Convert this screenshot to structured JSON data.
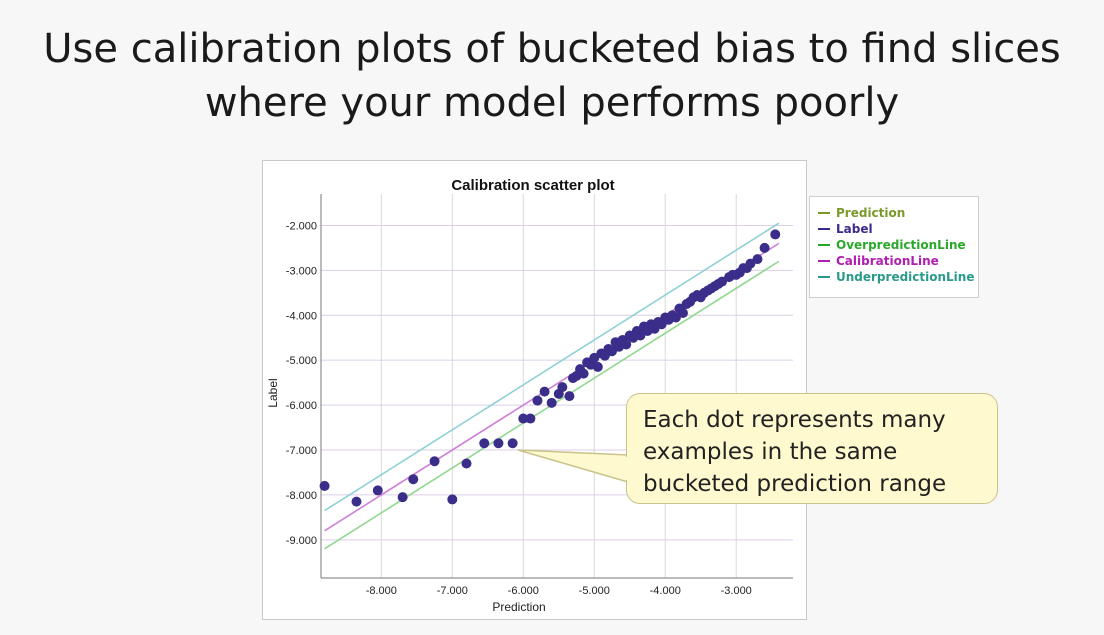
{
  "slide": {
    "title_lines": [
      "Use calibration plots of bucketed bias to find slices",
      "where your model performs poorly"
    ]
  },
  "callout": {
    "lines": [
      "Each dot represents many",
      "examples in the same",
      "bucketed prediction range"
    ]
  },
  "chart_data": {
    "type": "scatter",
    "title": "Calibration scatter plot",
    "xlabel": "Prediction",
    "ylabel": "Label",
    "xlim": [
      -8.85,
      -2.2
    ],
    "ylim": [
      -9.85,
      -1.3
    ],
    "x_ticks": [
      -8,
      -7,
      -6,
      -5,
      -4,
      -3
    ],
    "y_ticks": [
      -2,
      -3,
      -4,
      -5,
      -6,
      -7,
      -8,
      -9
    ],
    "x_tick_labels": [
      "-8.000",
      "-7.000",
      "-6.000",
      "-5.000",
      "-4.000",
      "-3.000"
    ],
    "y_tick_labels": [
      "-2.000",
      "-3.000",
      "-4.000",
      "-5.000",
      "-6.000",
      "-7.000",
      "-8.000",
      "-9.000"
    ],
    "grid": true,
    "legend_position": "outside-right",
    "legend": [
      {
        "name": "Prediction",
        "color": "#7a9a2a"
      },
      {
        "name": "Label",
        "color": "#3d2a8a"
      },
      {
        "name": "OverpredictionLine",
        "color": "#2aa82a"
      },
      {
        "name": "CalibrationLine",
        "color": "#b020b0"
      },
      {
        "name": "UnderpredictionLine",
        "color": "#2a9a8a"
      }
    ],
    "lines": [
      {
        "name": "CalibrationLine",
        "color": "#d080d8",
        "x": [
          -8.8,
          -2.4
        ],
        "y": [
          -8.8,
          -2.4
        ]
      },
      {
        "name": "UnderpredictionLine",
        "color": "#8fd0d6",
        "x": [
          -8.8,
          -2.4
        ],
        "y": [
          -8.35,
          -1.95
        ]
      },
      {
        "name": "OverpredictionLine",
        "color": "#90d890",
        "x": [
          -8.8,
          -2.4
        ],
        "y": [
          -9.2,
          -2.8
        ]
      }
    ],
    "points": {
      "color": "#3b2e8a",
      "x": [
        -8.8,
        -8.35,
        -8.05,
        -7.7,
        -7.55,
        -7.25,
        -7.0,
        -6.8,
        -6.55,
        -6.35,
        -6.15,
        -6.0,
        -5.9,
        -5.8,
        -5.7,
        -5.6,
        -5.5,
        -5.45,
        -5.35,
        -5.3,
        -5.25,
        -5.2,
        -5.15,
        -5.1,
        -5.05,
        -5.0,
        -4.95,
        -4.9,
        -4.85,
        -4.8,
        -4.75,
        -4.7,
        -4.65,
        -4.6,
        -4.55,
        -4.5,
        -4.45,
        -4.4,
        -4.35,
        -4.3,
        -4.25,
        -4.2,
        -4.15,
        -4.1,
        -4.05,
        -4.0,
        -3.95,
        -3.9,
        -3.85,
        -3.8,
        -3.75,
        -3.7,
        -3.65,
        -3.6,
        -3.55,
        -3.5,
        -3.45,
        -3.4,
        -3.35,
        -3.3,
        -3.25,
        -3.2,
        -3.1,
        -3.05,
        -3.0,
        -2.95,
        -2.9,
        -2.85,
        -2.8,
        -2.7,
        -2.6,
        -2.45
      ],
      "y": [
        -7.8,
        -8.15,
        -7.9,
        -8.05,
        -7.65,
        -7.25,
        -8.1,
        -7.3,
        -6.85,
        -6.85,
        -6.85,
        -6.3,
        -6.3,
        -5.9,
        -5.7,
        -5.95,
        -5.75,
        -5.6,
        -5.8,
        -5.4,
        -5.35,
        -5.2,
        -5.3,
        -5.05,
        -5.1,
        -4.95,
        -5.15,
        -4.85,
        -4.9,
        -4.75,
        -4.8,
        -4.6,
        -4.7,
        -4.55,
        -4.65,
        -4.45,
        -4.5,
        -4.35,
        -4.45,
        -4.25,
        -4.35,
        -4.2,
        -4.3,
        -4.15,
        -4.2,
        -4.05,
        -4.1,
        -4.0,
        -4.05,
        -3.85,
        -3.95,
        -3.75,
        -3.7,
        -3.6,
        -3.55,
        -3.6,
        -3.5,
        -3.45,
        -3.4,
        -3.35,
        -3.3,
        -3.25,
        -3.15,
        -3.1,
        -3.1,
        -3.05,
        -2.95,
        -2.95,
        -2.85,
        -2.75,
        -2.5,
        -2.2
      ]
    }
  }
}
